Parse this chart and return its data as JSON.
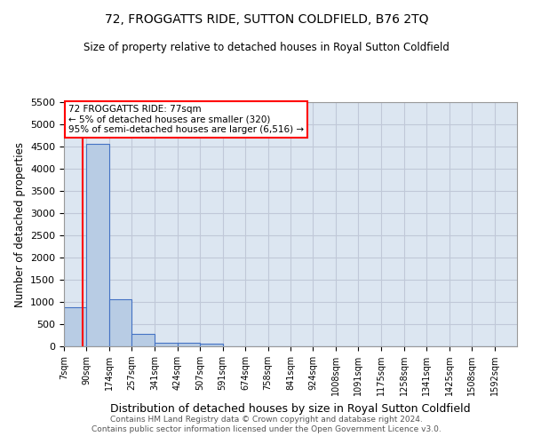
{
  "title": "72, FROGGATTS RIDE, SUTTON COLDFIELD, B76 2TQ",
  "subtitle": "Size of property relative to detached houses in Royal Sutton Coldfield",
  "xlabel": "Distribution of detached houses by size in Royal Sutton Coldfield",
  "ylabel": "Number of detached properties",
  "footer_line1": "Contains HM Land Registry data © Crown copyright and database right 2024.",
  "footer_line2": "Contains public sector information licensed under the Open Government Licence v3.0.",
  "annotation_title": "72 FROGGATTS RIDE: 77sqm",
  "annotation_line1": "← 5% of detached houses are smaller (320)",
  "annotation_line2": "95% of semi-detached houses are larger (6,516) →",
  "subject_size": 77,
  "bar_edges": [
    7,
    90,
    174,
    257,
    341,
    424,
    507,
    591,
    674,
    758,
    841,
    924,
    1008,
    1091,
    1175,
    1258,
    1341,
    1425,
    1508,
    1592,
    1675
  ],
  "bar_heights": [
    880,
    4560,
    1060,
    290,
    90,
    80,
    55,
    0,
    0,
    0,
    0,
    0,
    0,
    0,
    0,
    0,
    0,
    0,
    0,
    0
  ],
  "bar_color": "#b8cce4",
  "bar_edge_color": "#4472c4",
  "grid_color": "#c0c8d8",
  "background_color": "#dce6f1",
  "marker_color": "#ff0000",
  "ylim": [
    0,
    5500
  ],
  "yticks": [
    0,
    500,
    1000,
    1500,
    2000,
    2500,
    3000,
    3500,
    4000,
    4500,
    5000,
    5500
  ]
}
